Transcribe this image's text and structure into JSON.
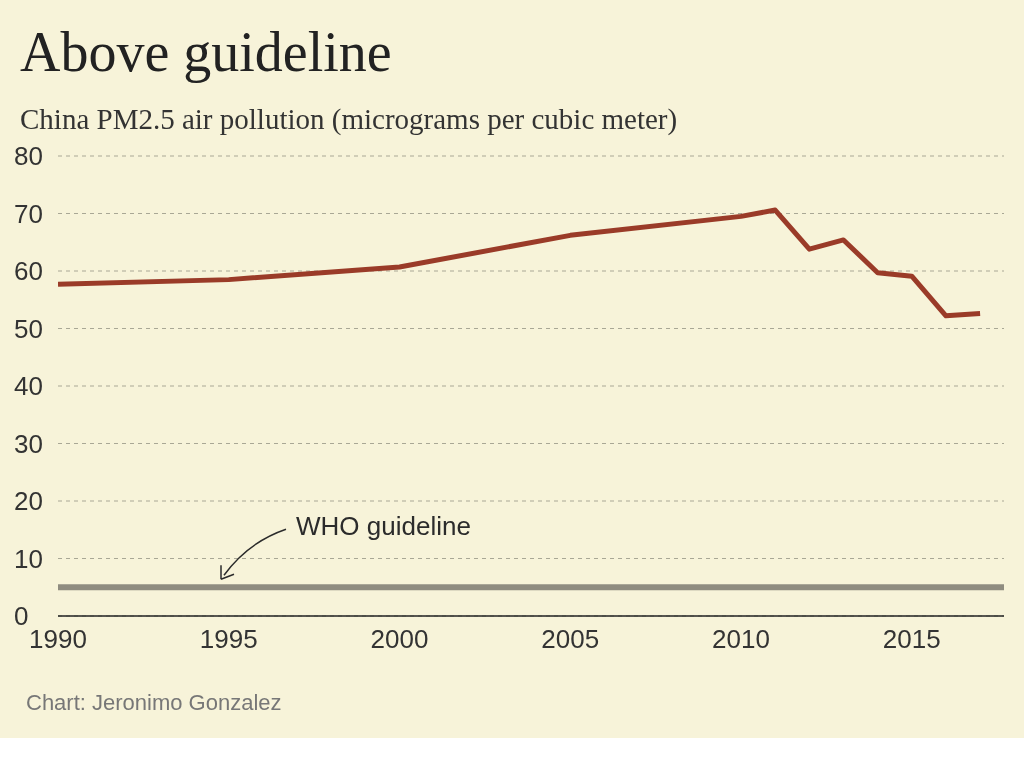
{
  "chart_data": {
    "type": "line",
    "title": "Above guideline",
    "subtitle": "China PM2.5 air pollution (micrograms per cubic meter)",
    "x": [
      1990,
      1995,
      2000,
      2005,
      2010,
      2011,
      2012,
      2013,
      2014,
      2015,
      2016,
      2017
    ],
    "series": [
      {
        "color": "#9a3b28",
        "values": [
          57.7,
          58.5,
          60.7,
          66.2,
          69.5,
          70.6,
          63.8,
          65.4,
          59.7,
          59.1,
          52.2,
          52.6
        ]
      }
    ],
    "xlim": [
      1990,
      2017.7
    ],
    "xticks": [
      1990,
      1995,
      2000,
      2005,
      2010,
      2015
    ],
    "ylim": [
      0,
      80
    ],
    "yticks": [
      0,
      10,
      20,
      30,
      40,
      50,
      60,
      70,
      80
    ],
    "grid": "y",
    "marker": "none",
    "line_style": "solid",
    "ref_lines": [
      {
        "axis": "y",
        "value": 5,
        "label": "WHO guideline",
        "color": "#8f8c80"
      }
    ],
    "annotations": [
      "Chart: Jeronimo Gonzalez"
    ]
  }
}
